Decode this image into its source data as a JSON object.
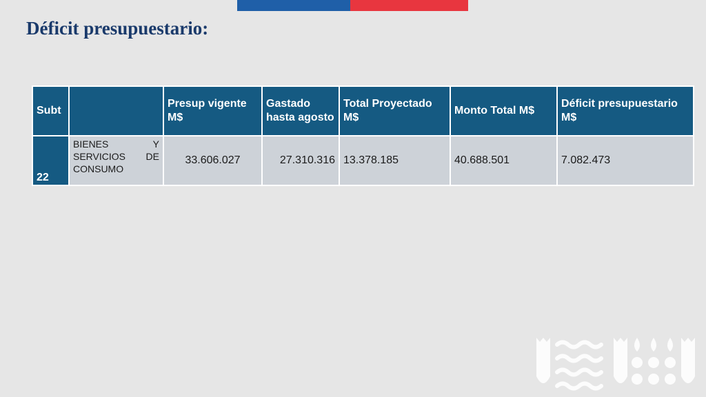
{
  "header": {
    "flag_colors": [
      "#1f5fa8",
      "#e8363f"
    ]
  },
  "title": "Déficit presupuestario:",
  "table": {
    "columns": [
      "Subt",
      "",
      "Presup vigente M$",
      "Gastado hasta agosto",
      "Total Proyectado M$",
      "Monto Total M$",
      "Déficit presupuestario M$"
    ],
    "rows": [
      {
        "subt": "22",
        "description": "BIENES Y SERVICIOS DE CONSUMO",
        "presup_vigente": "33.606.027",
        "gastado_hasta_agosto": "27.310.316",
        "total_proyectado": "13.378.185",
        "monto_total": "40.688.501",
        "deficit": "7.082.473"
      }
    ]
  },
  "colors": {
    "background": "#e6e6e6",
    "title": "#1a3a6b",
    "header_fill": "#155a82",
    "cell_fill": "#cdd2d8"
  },
  "watermark": {
    "icon": "institutional-logo-pattern-icon"
  }
}
